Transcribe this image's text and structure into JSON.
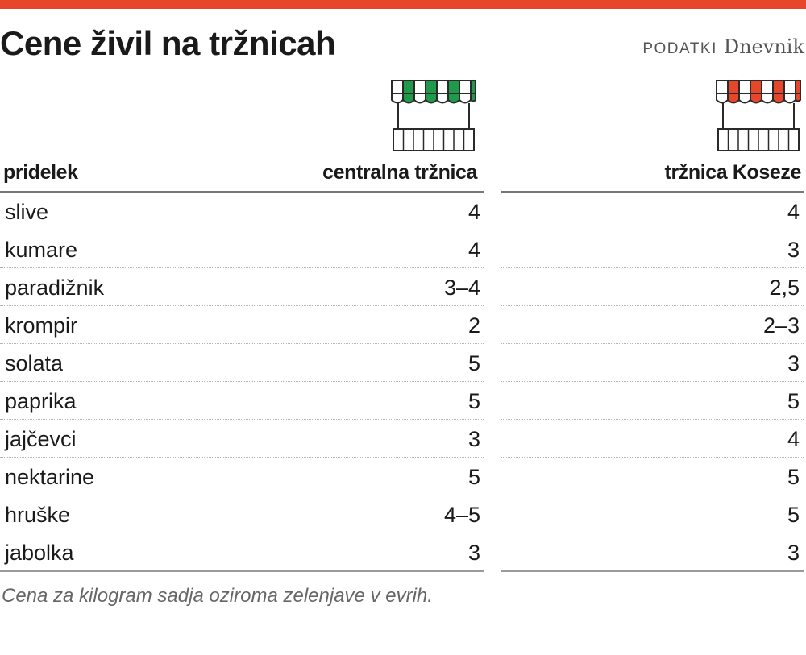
{
  "title": "Cene živil na tržnicah",
  "source": {
    "label": "PODATKI",
    "brand": "Dnevnik"
  },
  "colors": {
    "topbar": "#e8462a",
    "stall_central": "#1f9a4a",
    "stall_koseze": "#e8462a"
  },
  "icons": {
    "central": "market-stall-green-icon",
    "koseze": "market-stall-red-icon"
  },
  "headers": {
    "product": "pridelek",
    "central": "centralna tržnica",
    "koseze": "tržnica Koseze"
  },
  "chart_data": {
    "type": "table",
    "columns": [
      "pridelek",
      "centralna tržnica",
      "tržnica Koseze"
    ],
    "rows": [
      {
        "product": "slive",
        "central": "4",
        "koseze": "4"
      },
      {
        "product": "kumare",
        "central": "4",
        "koseze": "3"
      },
      {
        "product": "paradižnik",
        "central": "3–4",
        "koseze": "2,5"
      },
      {
        "product": "krompir",
        "central": "2",
        "koseze": "2–3"
      },
      {
        "product": "solata",
        "central": "5",
        "koseze": "3"
      },
      {
        "product": "paprika",
        "central": "5",
        "koseze": "5"
      },
      {
        "product": "jajčevci",
        "central": "3",
        "koseze": "4"
      },
      {
        "product": "nektarine",
        "central": "5",
        "koseze": "5"
      },
      {
        "product": "hruške",
        "central": "4–5",
        "koseze": "5"
      },
      {
        "product": "jabolka",
        "central": "3",
        "koseze": "3"
      }
    ]
  },
  "note": "Cena za kilogram sadja oziroma zelenjave v evrih."
}
